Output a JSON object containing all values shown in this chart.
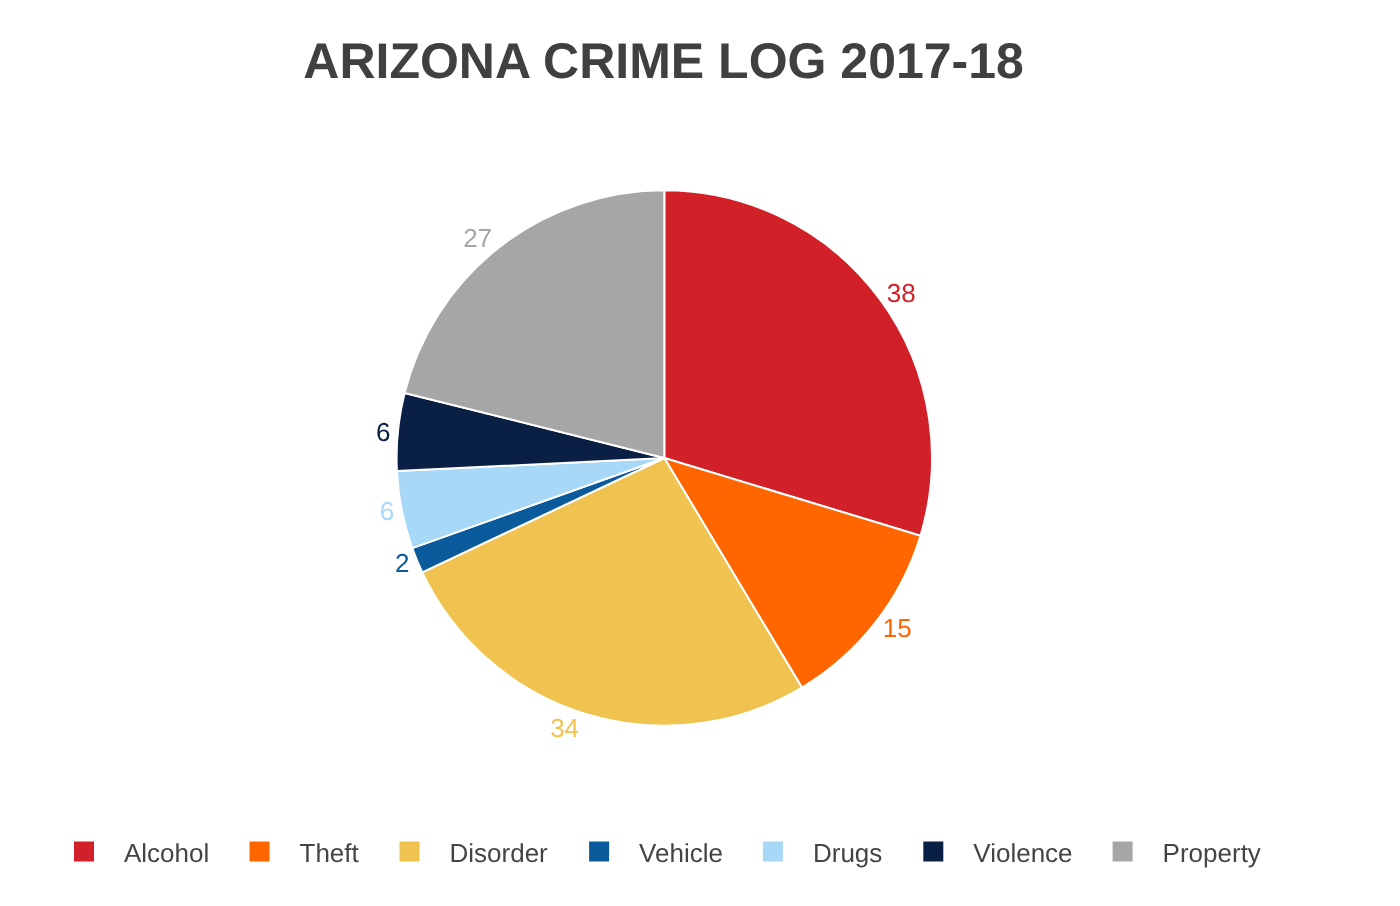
{
  "chart_data": {
    "type": "pie",
    "title": "ARIZONA CRIME LOG 2017-18",
    "categories": [
      "Alcohol",
      "Theft",
      "Disorder",
      "Vehicle",
      "Drugs",
      "Violence",
      "Property"
    ],
    "values": [
      38,
      15,
      34,
      2,
      6,
      6,
      27
    ],
    "colors": [
      "#d12027",
      "#ff6600",
      "#f0c350",
      "#0a5a9c",
      "#a8d8f8",
      "#0a1f44",
      "#a6a6a6"
    ],
    "data_labels": true,
    "legend": "bottom"
  }
}
